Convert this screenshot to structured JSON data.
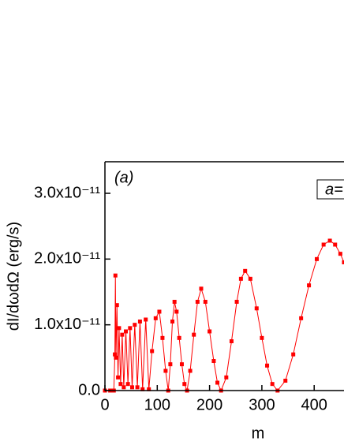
{
  "chart_data": {
    "type": "line",
    "panel_label": "(a)",
    "legend_text": "a=",
    "x_label": "m",
    "y_label": "dI/dωdΩ (erg/s)",
    "xlim": [
      0,
      457
    ],
    "ylim": [
      0,
      3.48e-11
    ],
    "xticks": [
      0,
      100,
      200,
      300,
      400
    ],
    "yticks": [
      {
        "value": 0,
        "label": "0.0"
      },
      {
        "value": 1e-11,
        "label": "1.0x10⁻¹¹"
      },
      {
        "value": 2e-11,
        "label": "2.0x10⁻¹¹"
      },
      {
        "value": 3e-11,
        "label": "3.0x10⁻¹¹"
      }
    ],
    "series": [
      {
        "color": "#ff0000",
        "x": [
          0,
          10,
          17,
          19,
          20,
          21,
          23,
          25,
          27,
          30,
          33,
          36,
          40,
          44,
          48,
          52,
          57,
          62,
          67,
          72,
          78,
          84,
          90,
          97,
          104,
          110,
          116,
          121,
          125,
          129,
          133,
          137,
          142,
          147,
          152,
          157,
          163,
          170,
          177,
          184,
          192,
          200,
          208,
          215,
          222,
          232,
          242,
          252,
          260,
          268,
          278,
          290,
          300,
          310,
          320,
          330,
          345,
          360,
          375,
          390,
          405,
          418,
          430,
          440,
          450,
          457
        ],
        "values": [
          0,
          0,
          0,
          5.5e-12,
          1.75e-11,
          5e-12,
          1.3e-11,
          2e-12,
          9.5e-12,
          1e-12,
          8.5e-12,
          5e-13,
          9e-12,
          1e-12,
          9.5e-12,
          5e-13,
          1e-11,
          5e-13,
          1.05e-11,
          2e-13,
          1.08e-11,
          2e-13,
          6e-12,
          1.1e-11,
          1.2e-11,
          8e-12,
          3e-12,
          0,
          4e-12,
          1.05e-11,
          1.35e-11,
          1.2e-11,
          8e-12,
          4e-12,
          1e-12,
          0,
          3e-12,
          8.5e-12,
          1.35e-11,
          1.55e-11,
          1.35e-11,
          9e-12,
          4.5e-12,
          1.2e-12,
          0,
          2e-12,
          7.5e-12,
          1.35e-11,
          1.7e-11,
          1.82e-11,
          1.7e-11,
          1.25e-11,
          8e-12,
          3.8e-12,
          1e-12,
          0,
          1.5e-12,
          5.5e-12,
          1.1e-11,
          1.6e-11,
          2e-11,
          2.22e-11,
          2.28e-11,
          2.22e-11,
          2.08e-11,
          1.95e-11
        ]
      }
    ]
  }
}
